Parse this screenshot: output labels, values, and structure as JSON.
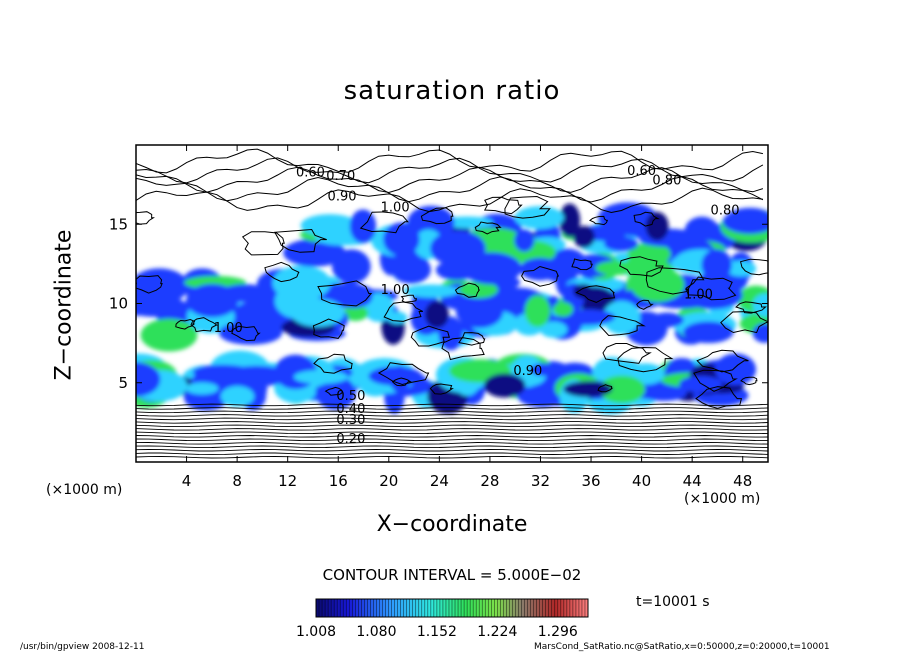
{
  "figure": {
    "title": "saturation ratio",
    "xlabel": "X−coordinate",
    "ylabel": "Z−coordinate",
    "x_unit_left": "(×1000 m)",
    "x_unit_right": "(×1000 m)",
    "contour_interval": "CONTOUR INTERVAL = 5.000E−02",
    "time_label": "t=10001 s",
    "footer_left": "/usr/bin/gpview   2008-12-11",
    "footer_right": "MarsCond_SatRatio.nc@SatRatio,x=0:50000,z=0:20000,t=10001"
  },
  "colors": {
    "shade_low": "#0a0a82",
    "shade_mid_low": "#1a3cff",
    "shade_mid": "#2fd2ff",
    "shade_mid_high": "#2fe05a",
    "shade_high": "#c8282d",
    "contour": "#000000"
  },
  "chart_data": {
    "type": "heatmap",
    "title": "saturation ratio",
    "xlabel": "X−coordinate",
    "ylabel": "Z−coordinate",
    "x_unit": "(×1000 m)",
    "z_unit": "",
    "xlim": [
      0,
      50
    ],
    "ylim": [
      0,
      20
    ],
    "x_ticks": [
      4,
      8,
      12,
      16,
      20,
      24,
      28,
      32,
      36,
      40,
      44,
      48
    ],
    "y_ticks": [
      5,
      10,
      15
    ],
    "contour_interval": 0.05,
    "contour_labels": [
      {
        "value": "0.60",
        "x": 13.8,
        "z": 18.0
      },
      {
        "value": "0.70",
        "x": 16.2,
        "z": 17.8
      },
      {
        "value": "0.90",
        "x": 16.3,
        "z": 16.5
      },
      {
        "value": "1.00",
        "x": 20.5,
        "z": 15.8
      },
      {
        "value": "0.60",
        "x": 40.0,
        "z": 18.1
      },
      {
        "value": "0.80",
        "x": 42.0,
        "z": 17.5
      },
      {
        "value": "0.80",
        "x": 46.6,
        "z": 15.6
      },
      {
        "value": "1.00",
        "x": 20.5,
        "z": 10.6
      },
      {
        "value": "1.00",
        "x": 44.5,
        "z": 10.3
      },
      {
        "value": "1.00",
        "x": 7.3,
        "z": 8.2
      },
      {
        "value": "0.90",
        "x": 31.0,
        "z": 5.5
      },
      {
        "value": "0.50",
        "x": 17.0,
        "z": 3.9
      },
      {
        "value": "0.40",
        "x": 17.0,
        "z": 3.1
      },
      {
        "value": "0.30",
        "x": 17.0,
        "z": 2.4
      },
      {
        "value": "0.20",
        "x": 17.0,
        "z": 1.2
      }
    ],
    "colorbar": {
      "min": 1.008,
      "max": 1.332,
      "ticks": [
        "1.008",
        "1.080",
        "1.152",
        "1.224",
        "1.296"
      ]
    },
    "supersaturated_regions": [
      {
        "description": "main band",
        "x_range": [
          0,
          50
        ],
        "z_range": [
          8,
          11.5
        ],
        "peak": 1.2
      },
      {
        "description": "upper band",
        "x_range": [
          14,
          50
        ],
        "z_range": [
          12,
          15.5
        ],
        "peak": 1.15
      },
      {
        "description": "lower patches",
        "x_range": [
          0,
          48
        ],
        "z_range": [
          4,
          6
        ],
        "peak": 1.25
      }
    ]
  }
}
